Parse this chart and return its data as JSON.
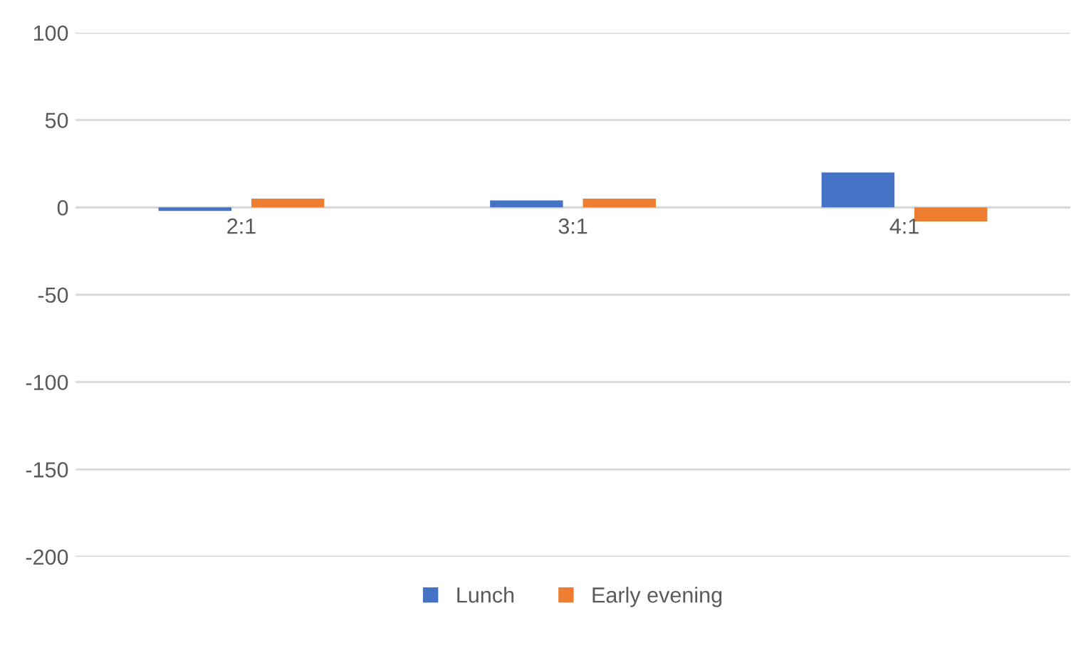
{
  "chart_data": {
    "type": "bar",
    "categories": [
      "2:1",
      "3:1",
      "4:1"
    ],
    "series": [
      {
        "name": "Lunch",
        "color": "#4472c4",
        "values": [
          -2,
          4,
          20
        ]
      },
      {
        "name": "Early evening",
        "color": "#ed7d31",
        "values": [
          5,
          5,
          -8
        ]
      }
    ],
    "ylim": [
      -200,
      100
    ],
    "yticks": [
      -200,
      -150,
      -100,
      -50,
      0,
      50,
      100
    ],
    "grid": "y",
    "legend": "bottom"
  }
}
